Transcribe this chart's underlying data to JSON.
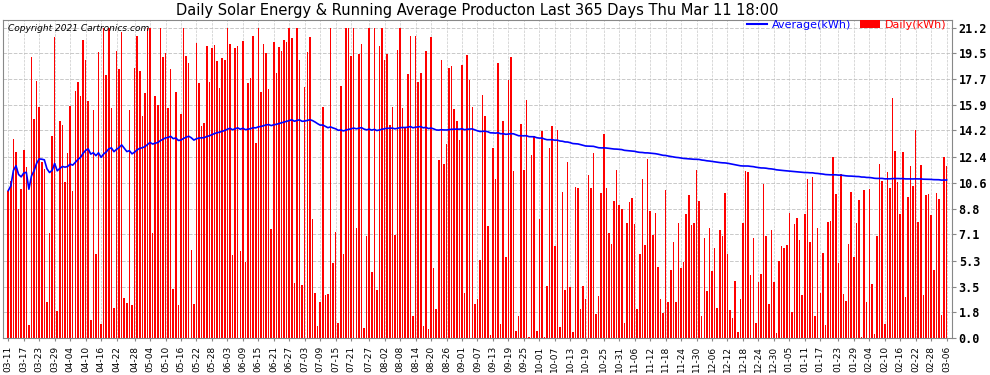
{
  "title": "Daily Solar Energy & Running Average Producton Last 365 Days Thu Mar 11 18:00",
  "copyright": "Copyright 2021 Cartronics.com",
  "yticks": [
    0.0,
    1.8,
    3.5,
    5.3,
    7.1,
    8.8,
    10.6,
    12.4,
    14.2,
    15.9,
    17.7,
    19.5,
    21.2
  ],
  "ymax": 21.2,
  "ymin": 0.0,
  "bar_color": "#ff0000",
  "avg_color": "#0000ff",
  "background_color": "#ffffff",
  "grid_color": "#bbbbbb",
  "title_color": "#000000",
  "legend_avg_color": "#0000ff",
  "legend_daily_color": "#ff0000",
  "x_labels": [
    "03-11",
    "03-17",
    "03-23",
    "03-29",
    "04-04",
    "04-10",
    "04-16",
    "04-22",
    "04-28",
    "05-04",
    "05-10",
    "05-16",
    "05-22",
    "05-28",
    "06-03",
    "06-09",
    "06-15",
    "06-21",
    "06-27",
    "07-03",
    "07-09",
    "07-15",
    "07-21",
    "07-27",
    "08-02",
    "08-08",
    "08-14",
    "08-20",
    "08-26",
    "09-01",
    "09-07",
    "09-13",
    "09-19",
    "09-25",
    "10-01",
    "10-07",
    "10-13",
    "10-19",
    "10-25",
    "10-31",
    "11-06",
    "11-12",
    "11-18",
    "11-24",
    "11-30",
    "12-06",
    "12-12",
    "12-18",
    "12-24",
    "12-30",
    "01-05",
    "01-11",
    "01-17",
    "01-23",
    "01-29",
    "02-04",
    "02-10",
    "02-16",
    "02-22",
    "02-28",
    "03-06"
  ]
}
